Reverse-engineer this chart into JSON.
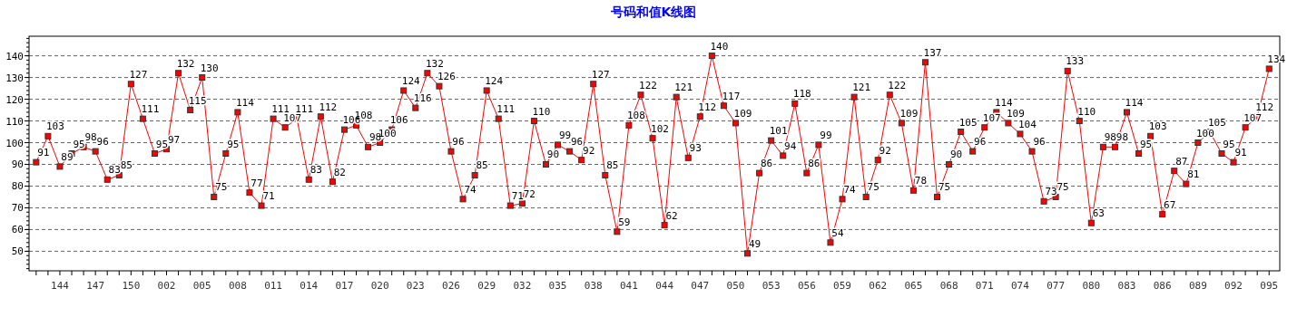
{
  "chart_data": {
    "type": "line",
    "title": "号码和值K线图",
    "categories": [
      null,
      null,
      "144",
      null,
      null,
      "147",
      null,
      null,
      "150",
      null,
      null,
      "002",
      null,
      null,
      "005",
      null,
      null,
      "008",
      null,
      null,
      "011",
      null,
      null,
      "014",
      null,
      null,
      "017",
      null,
      null,
      "020",
      null,
      null,
      "023",
      null,
      null,
      "026",
      null,
      null,
      "029",
      null,
      null,
      "032",
      null,
      null,
      "035",
      null,
      null,
      "038",
      null,
      null,
      "041",
      null,
      null,
      "044",
      null,
      null,
      "047",
      null,
      null,
      "050",
      null,
      null,
      "053",
      null,
      null,
      "056",
      null,
      null,
      "059",
      null,
      null,
      "062",
      null,
      null,
      "065",
      null,
      null,
      "068",
      null,
      null,
      "071",
      null,
      null,
      "074",
      null,
      null,
      "077",
      null,
      null,
      "080",
      null,
      null,
      "083",
      null,
      null,
      "086",
      null,
      null,
      "089",
      null,
      null,
      "092",
      null,
      null,
      "095"
    ],
    "series": [
      {
        "color": "#ff0000",
        "values": [
          91,
          103,
          89,
          95,
          98,
          96,
          83,
          85,
          127,
          111,
          95,
          97,
          132,
          115,
          130,
          75,
          95,
          114,
          77,
          71,
          111,
          107,
          111,
          83,
          112,
          82,
          106,
          108,
          98,
          100,
          106,
          124,
          116,
          132,
          126,
          96,
          74,
          85,
          124,
          111,
          71,
          72,
          110,
          90,
          99,
          96,
          92,
          127,
          85,
          59,
          108,
          122,
          102,
          62,
          121,
          93,
          112,
          140,
          117,
          109,
          49,
          86,
          101,
          94,
          118,
          86,
          99,
          54,
          74,
          121,
          75,
          92,
          122,
          109,
          78,
          137,
          75,
          90,
          105,
          96,
          107,
          114,
          109,
          104,
          96,
          73,
          75,
          133,
          110,
          63,
          98,
          98,
          114,
          95,
          103,
          67,
          87,
          81,
          100,
          105,
          95,
          91,
          107,
          112,
          134
        ]
      }
    ],
    "ylim": [
      41,
      149
    ],
    "yticks": [
      50,
      60,
      70,
      80,
      90,
      100,
      110,
      120,
      130,
      140
    ],
    "grid": "y",
    "marker": "square",
    "line_style": "solid",
    "data_labels": true
  }
}
